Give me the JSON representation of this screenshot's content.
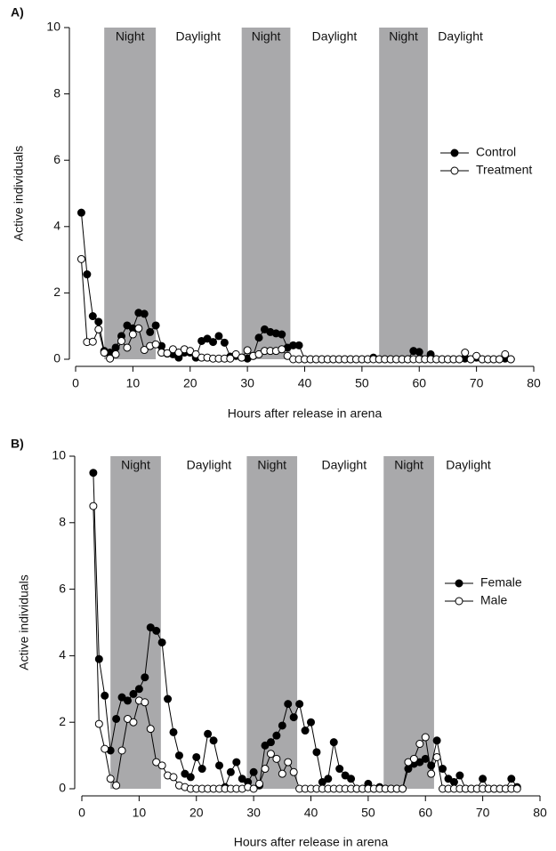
{
  "chart_data": [
    {
      "type": "line",
      "panel_label": "A)",
      "x_label": "Hours after release in arena",
      "y_label": "Active individuals",
      "x": [
        1,
        2,
        3,
        4,
        5,
        6,
        7,
        8,
        9,
        10,
        11,
        12,
        13,
        14,
        15,
        16,
        17,
        18,
        19,
        20,
        21,
        22,
        23,
        24,
        25,
        26,
        27,
        28,
        29,
        30,
        31,
        32,
        33,
        34,
        35,
        36,
        37,
        38,
        39,
        40,
        41,
        42,
        43,
        44,
        45,
        46,
        47,
        48,
        49,
        50,
        51,
        52,
        53,
        54,
        55,
        56,
        57,
        58,
        59,
        60,
        61,
        62,
        63,
        64,
        65,
        66,
        67,
        68,
        69,
        70,
        71,
        72,
        73,
        74,
        75,
        76
      ],
      "series": [
        {
          "name": "Control",
          "color": "#000000",
          "marker_fill": "#000000",
          "values": [
            4.42,
            2.56,
            1.3,
            1.13,
            0.25,
            0.2,
            0.35,
            0.7,
            1.02,
            0.93,
            1.4,
            1.37,
            0.82,
            1.02,
            0.4,
            0.17,
            0.15,
            0.05,
            0.2,
            0.2,
            0.05,
            0.55,
            0.62,
            0.52,
            0.7,
            0.5,
            0.08,
            0.1,
            0.05,
            0.02,
            0.1,
            0.65,
            0.9,
            0.82,
            0.78,
            0.75,
            0.35,
            0.42,
            0.42,
            0,
            0,
            0,
            0,
            0,
            0,
            0,
            0,
            0,
            0,
            0,
            0,
            0.05,
            0,
            0,
            0,
            0,
            0,
            0,
            0.25,
            0.22,
            0,
            0.15,
            0,
            0,
            0,
            0,
            0,
            0.02,
            0,
            0.05,
            0,
            0,
            0,
            0,
            0.02,
            0
          ]
        },
        {
          "name": "Treatment",
          "color": "#000000",
          "marker_fill": "#ffffff",
          "values": [
            3.02,
            0.52,
            0.53,
            0.9,
            0.2,
            0.02,
            0.15,
            0.55,
            0.35,
            0.75,
            0.93,
            0.28,
            0.4,
            0.45,
            0.2,
            0.18,
            0.3,
            0.2,
            0.3,
            0.25,
            0.15,
            0.05,
            0.05,
            0.02,
            0.02,
            0.02,
            0.02,
            0.15,
            0.05,
            0.27,
            0.1,
            0.15,
            0.25,
            0.25,
            0.25,
            0.3,
            0.1,
            0,
            0,
            0,
            0,
            0,
            0,
            0,
            0,
            0,
            0,
            0,
            0,
            0,
            0,
            0,
            0,
            0,
            0,
            0,
            0,
            0,
            0,
            0,
            0,
            0,
            0,
            0,
            0,
            0,
            0,
            0.2,
            0,
            0.1,
            0,
            0,
            0,
            0,
            0.15,
            0
          ]
        }
      ],
      "shaded_bands": [
        {
          "start": 5,
          "end": 14,
          "label": "Night"
        },
        {
          "start": 29,
          "end": 37.5,
          "label": "Night"
        },
        {
          "start": 53,
          "end": 61.5,
          "label": "Night"
        }
      ],
      "annotations": [
        {
          "x": 21.4,
          "text": "Daylight"
        },
        {
          "x": 45.2,
          "text": "Daylight"
        },
        {
          "x": 67.2,
          "text": "Daylight"
        }
      ],
      "band_color": "#a9a9ab",
      "xlim": [
        0,
        80
      ],
      "xticks": [
        0,
        10,
        20,
        30,
        40,
        50,
        60,
        70,
        80
      ],
      "ylim": [
        0,
        10
      ],
      "yticks": [
        0,
        2,
        4,
        6,
        8,
        10
      ],
      "legend": "right"
    },
    {
      "type": "line",
      "panel_label": "B)",
      "x_label": "Hours after release in arena",
      "y_label": "Active individuals",
      "x": [
        2,
        3,
        4,
        5,
        6,
        7,
        8,
        9,
        10,
        11,
        12,
        13,
        14,
        15,
        16,
        17,
        18,
        19,
        20,
        21,
        22,
        23,
        24,
        25,
        26,
        27,
        28,
        29,
        30,
        31,
        32,
        33,
        34,
        35,
        36,
        37,
        38,
        39,
        40,
        41,
        42,
        43,
        44,
        45,
        46,
        47,
        48,
        49,
        50,
        51,
        52,
        53,
        54,
        55,
        56,
        57,
        58,
        59,
        60,
        61,
        62,
        63,
        64,
        65,
        66,
        67,
        68,
        69,
        70,
        71,
        72,
        73,
        74,
        75,
        76
      ],
      "series": [
        {
          "name": "Female",
          "color": "#000000",
          "marker_fill": "#000000",
          "values": [
            9.5,
            3.9,
            2.8,
            1.15,
            2.1,
            2.75,
            2.65,
            2.85,
            3.0,
            3.35,
            4.85,
            4.75,
            4.4,
            2.7,
            1.7,
            1.0,
            0.45,
            0.35,
            0.95,
            0.6,
            1.65,
            1.45,
            0.7,
            0.05,
            0.5,
            0.8,
            0.3,
            0.2,
            0.5,
            0.1,
            1.3,
            1.4,
            1.6,
            1.9,
            2.55,
            2.15,
            2.55,
            1.75,
            2.0,
            1.1,
            0.2,
            0.3,
            1.4,
            0.6,
            0.4,
            0.3,
            0,
            0,
            0.15,
            0,
            0.05,
            0,
            0,
            0,
            0,
            0.6,
            0.75,
            0.8,
            0.9,
            0.7,
            1.45,
            0.6,
            0.3,
            0.2,
            0.4,
            0,
            0,
            0,
            0.3,
            0,
            0,
            0,
            0,
            0.3,
            0.05
          ]
        },
        {
          "name": "Male",
          "color": "#000000",
          "marker_fill": "#ffffff",
          "values": [
            8.5,
            1.95,
            1.2,
            0.3,
            0.1,
            1.15,
            2.1,
            2.0,
            2.65,
            2.6,
            1.8,
            0.8,
            0.7,
            0.4,
            0.35,
            0.1,
            0.05,
            0,
            0,
            0,
            0,
            0,
            0,
            0,
            0,
            0,
            0,
            0.05,
            0,
            0.15,
            0.6,
            1.05,
            0.9,
            0.45,
            0.8,
            0.5,
            0,
            0,
            0,
            0,
            0,
            0,
            0,
            0,
            0,
            0,
            0,
            0,
            0,
            0,
            0,
            0,
            0,
            0,
            0,
            0.8,
            0.9,
            1.35,
            1.55,
            0.45,
            0.95,
            0,
            0,
            0,
            0,
            0,
            0,
            0,
            0,
            0,
            0,
            0,
            0,
            0,
            0
          ]
        }
      ],
      "shaded_bands": [
        {
          "start": 5,
          "end": 13.8,
          "label": "Night"
        },
        {
          "start": 28.8,
          "end": 37.6,
          "label": "Night"
        },
        {
          "start": 52.7,
          "end": 61.5,
          "label": "Night"
        }
      ],
      "annotations": [
        {
          "x": 22.2,
          "text": "Daylight"
        },
        {
          "x": 45.8,
          "text": "Daylight"
        },
        {
          "x": 67.5,
          "text": "Daylight"
        }
      ],
      "band_color": "#a9a9ab",
      "xlim": [
        0,
        80
      ],
      "xticks": [
        0,
        10,
        20,
        30,
        40,
        50,
        60,
        70,
        80
      ],
      "ylim": [
        0,
        10
      ],
      "yticks": [
        0,
        2,
        4,
        6,
        8,
        10
      ],
      "legend": "right"
    }
  ]
}
